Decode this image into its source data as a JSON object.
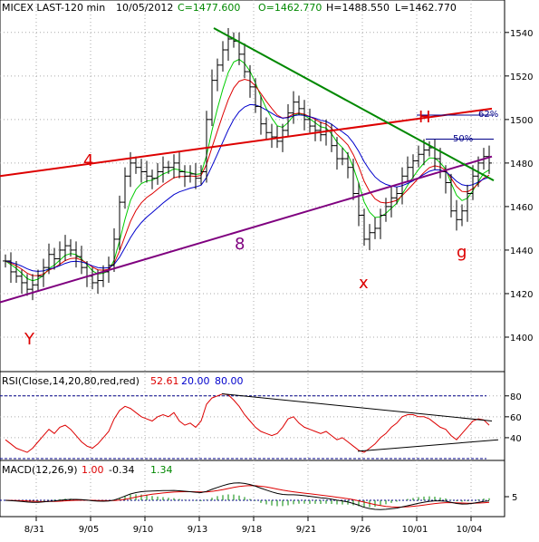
{
  "header": {
    "symbol": "MICEX LAST-120 min",
    "date": "10/05/2012",
    "close": "C=1477.600",
    "open": "O=1462.770",
    "high": "H=1488.550",
    "low": "L=1462.770"
  },
  "rsi_header": {
    "label": "RSI(Close,14,20,80,red,red)",
    "value": "52.61",
    "low": "20.00",
    "high": "80.00"
  },
  "macd_header": {
    "label": "MACD(12,26,9)",
    "value1": "1.00",
    "value2": "-0.34",
    "value3": "1.34"
  },
  "annotations": {
    "label_4": "4",
    "label_H": "H",
    "label_8": "8",
    "label_Y": "Y",
    "label_x": "x",
    "label_g": "g",
    "fib_62": "62%",
    "fib_50": "50%"
  },
  "colors": {
    "price": "#000000",
    "ma_fast": "#00cc00",
    "ma_mid": "#dd0000",
    "ma_slow": "#0000cc",
    "downtrend": "#008800",
    "resistance": "#dd0000",
    "support": "#7f007f",
    "rsi": "#dd0000",
    "macd": "#000000",
    "macd_signal": "#dd0000",
    "histogram": "#008800",
    "annotation": "#dd0000",
    "label_8": "#7f007f",
    "fib": "#000088"
  },
  "chart_data": [
    {
      "type": "candlestick",
      "title": "MICEX LAST-120 min",
      "x_tick_labels": [
        "8/31",
        "9/05",
        "9/10",
        "9/13",
        "9/18",
        "9/21",
        "9/26",
        "10/01",
        "10/04"
      ],
      "y_tick_labels": [
        "1400",
        "1420",
        "1440",
        "1460",
        "1480",
        "1500",
        "1520",
        "1540"
      ],
      "ylim": [
        1385,
        1547
      ],
      "series": [
        {
          "name": "price",
          "values": [
            1435,
            1430,
            1428,
            1425,
            1422,
            1424,
            1428,
            1432,
            1438,
            1436,
            1440,
            1442,
            1440,
            1437,
            1432,
            1428,
            1425,
            1426,
            1430,
            1433,
            1445,
            1462,
            1474,
            1480,
            1478,
            1476,
            1474,
            1473,
            1476,
            1478,
            1478,
            1480,
            1476,
            1474,
            1475,
            1473,
            1476,
            1500,
            1518,
            1525,
            1532,
            1537,
            1536,
            1530,
            1522,
            1515,
            1506,
            1498,
            1494,
            1492,
            1490,
            1495,
            1503,
            1508,
            1505,
            1500,
            1497,
            1495,
            1493,
            1495,
            1488,
            1482,
            1482,
            1478,
            1466,
            1456,
            1445,
            1448,
            1450,
            1456,
            1460,
            1464,
            1466,
            1474,
            1478,
            1481,
            1484,
            1486,
            1487,
            1482,
            1476,
            1471,
            1458,
            1454,
            1458,
            1466,
            1474,
            1480,
            1483,
            1480
          ]
        },
        {
          "name": "MA fast",
          "values": []
        },
        {
          "name": "MA mid",
          "values": []
        },
        {
          "name": "MA slow",
          "values": []
        }
      ],
      "grid": "dotted"
    },
    {
      "type": "line",
      "title": "RSI(Close,14,20,80,red,red)",
      "y_tick_labels": [
        "40",
        "60",
        "80"
      ],
      "ylim": [
        20,
        85
      ],
      "reference_levels": [
        20,
        80
      ],
      "series": [
        {
          "name": "RSI",
          "values": [
            38,
            34,
            30,
            28,
            26,
            30,
            36,
            42,
            48,
            44,
            50,
            52,
            48,
            42,
            36,
            32,
            30,
            34,
            40,
            46,
            58,
            66,
            70,
            68,
            64,
            60,
            58,
            56,
            60,
            62,
            60,
            64,
            56,
            52,
            54,
            50,
            56,
            72,
            78,
            80,
            82,
            81,
            76,
            70,
            62,
            56,
            50,
            46,
            44,
            42,
            44,
            50,
            58,
            60,
            54,
            50,
            48,
            46,
            44,
            46,
            42,
            38,
            40,
            36,
            32,
            28,
            26,
            30,
            34,
            40,
            44,
            50,
            54,
            60,
            62,
            62,
            60,
            60,
            58,
            54,
            50,
            48,
            42,
            38,
            44,
            50,
            56,
            58,
            57,
            52
          ]
        }
      ]
    },
    {
      "type": "line",
      "title": "MACD(12,26,9)",
      "y_tick_labels": [
        "5"
      ],
      "series": [
        {
          "name": "MACD",
          "values": []
        },
        {
          "name": "signal",
          "values": []
        },
        {
          "name": "histogram",
          "values": []
        }
      ]
    }
  ]
}
